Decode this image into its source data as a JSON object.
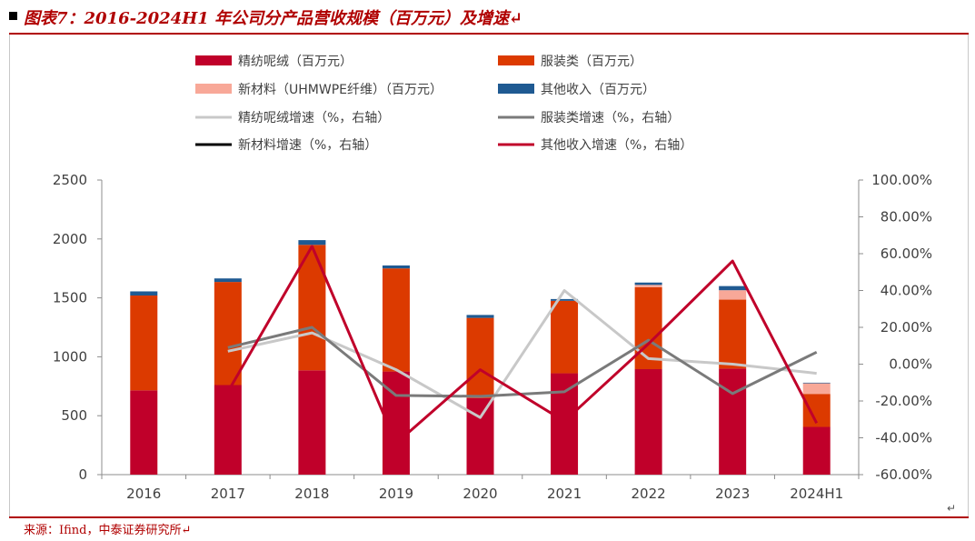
{
  "title": "图表7：2016-2024H1 年公司分产品营收规模（百万元）及增速",
  "source": "来源：Ifind，中泰证券研究所",
  "return_mark": "↵",
  "chart_data": {
    "type": "bar",
    "stacked": true,
    "categories": [
      "2016",
      "2017",
      "2018",
      "2019",
      "2020",
      "2021",
      "2022",
      "2023",
      "2024H1"
    ],
    "ylim": [
      0,
      2500
    ],
    "yticks": [
      "0",
      "500",
      "1000",
      "1500",
      "2000",
      "2500"
    ],
    "y2lim": [
      -0.6,
      1.0
    ],
    "y2ticks": [
      "-60.00%",
      "-40.00%",
      "-20.00%",
      "0.00%",
      "20.00%",
      "40.00%",
      "60.00%",
      "80.00%",
      "100.00%"
    ],
    "legend_position": "top",
    "bar_series": [
      {
        "name": "精纺呢绒（百万元）",
        "color": "#c0002a",
        "values": [
          715,
          760,
          885,
          875,
          650,
          860,
          895,
          900,
          405
        ]
      },
      {
        "name": "服装类（百万元）",
        "color": "#dc3a00",
        "values": [
          805,
          875,
          1065,
          875,
          680,
          615,
          695,
          585,
          280
        ]
      },
      {
        "name": "新材料（UHMWPE纤维）（百万元）",
        "color": "#f8a898",
        "values": [
          0,
          0,
          0,
          0,
          0,
          0,
          20,
          80,
          90
        ]
      },
      {
        "name": "其他收入（百万元）",
        "color": "#1f5a92",
        "values": [
          35,
          30,
          40,
          25,
          25,
          15,
          20,
          35,
          5
        ]
      }
    ],
    "line_series": [
      {
        "name": "精纺呢绒增速（%，右轴）",
        "color": "#c8c8c8",
        "values": [
          null,
          0.07,
          0.17,
          -0.03,
          -0.29,
          0.4,
          0.03,
          0.0,
          -0.05
        ]
      },
      {
        "name": "服装类增速（%，右轴）",
        "color": "#7a7a7a",
        "values": [
          null,
          0.09,
          0.2,
          -0.17,
          -0.175,
          -0.15,
          0.13,
          -0.16,
          0.065
        ]
      },
      {
        "name": "新材料增速（%，右轴）",
        "color": "#000000",
        "values": [
          null,
          null,
          null,
          null,
          null,
          null,
          null,
          null,
          null
        ]
      },
      {
        "name": "其他收入增速（%，右轴）",
        "color": "#c0002a",
        "values": [
          null,
          -0.15,
          0.64,
          -0.43,
          -0.03,
          -0.31,
          0.11,
          0.56,
          -0.32
        ]
      }
    ]
  }
}
